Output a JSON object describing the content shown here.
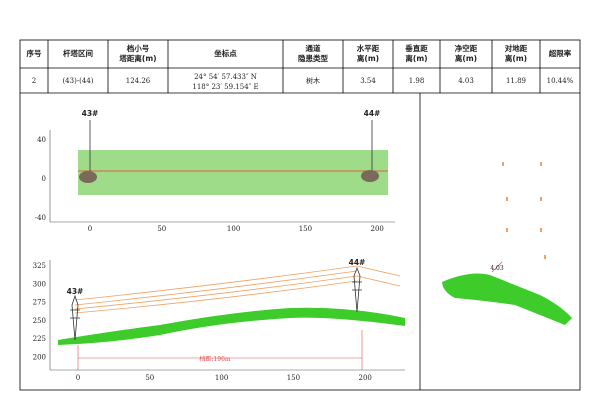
{
  "table": {
    "headers": [
      "序号",
      "杆塔区间",
      "档小号塔距离(m)",
      "坐标点",
      "通道隐患类型",
      "水平距离(m)",
      "垂直距离(m)",
      "净空距离(m)",
      "对地距离(m)",
      "超限率"
    ],
    "rows": [
      [
        "2",
        "(43)-(44)",
        "124.26",
        "24° 54′ 57.433″ N",
        "118° 23′ 59.154″ E",
        "树木",
        "3.54",
        "1.98",
        "4.03",
        "11.89",
        "10.44%"
      ]
    ]
  },
  "plan_view": {
    "tower_left": "43#",
    "tower_right": "44#",
    "yticks": [
      40,
      0,
      -40
    ],
    "xticks": [
      0,
      50,
      100,
      150,
      200
    ]
  },
  "profile_view": {
    "tower_left": "43#",
    "tower_right": "44#",
    "span_label": "档距:196m",
    "yticks": [
      325,
      300,
      275,
      250,
      225,
      200
    ],
    "xticks": [
      0,
      50,
      100,
      150,
      200
    ]
  },
  "section_view": {
    "distance_label": "4.03"
  }
}
